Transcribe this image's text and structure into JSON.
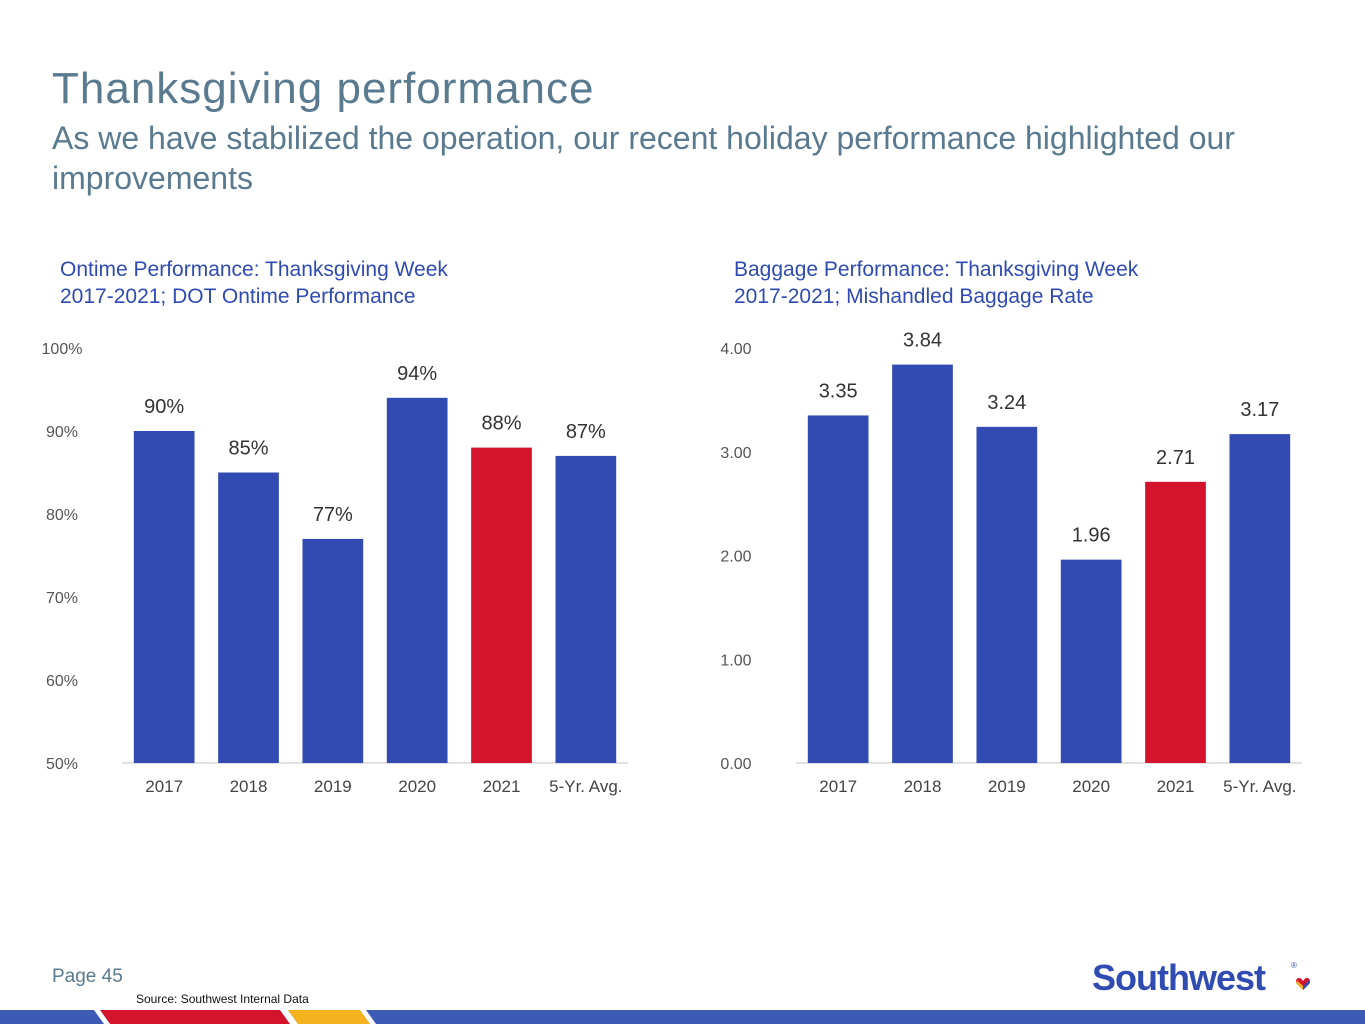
{
  "title": "Thanksgiving performance",
  "subtitle": "As we have stabilized the operation, our recent holiday performance highlighted our improvements",
  "page": "Page 45",
  "source": "Source:  Southwest Internal Data",
  "logo": "Southwest",
  "logo_mark": "®",
  "colors": {
    "bar": "#314bb2",
    "highlight": "#d4142c",
    "heading": "#5a7a90",
    "chart_title": "#2f4bb3"
  },
  "chart_data": [
    {
      "type": "bar",
      "title_line1": "Ontime Performance:  Thanksgiving Week",
      "title_line2": "2017-2021;  DOT Ontime Performance",
      "categories": [
        "2017",
        "2018",
        "2019",
        "2020",
        "2021",
        "5-Yr. Avg."
      ],
      "values": [
        90,
        85,
        77,
        94,
        88,
        87
      ],
      "labels": [
        "90%",
        "85%",
        "77%",
        "94%",
        "88%",
        "87%"
      ],
      "highlight_index": 4,
      "ylim": [
        50,
        100
      ],
      "yticks": [
        50,
        60,
        70,
        80,
        90,
        100
      ],
      "ytick_labels": [
        "50%",
        "60%",
        "70%",
        "80%",
        "90%",
        "100%"
      ],
      "grid": false
    },
    {
      "type": "bar",
      "title_line1": "Baggage Performance:  Thanksgiving Week",
      "title_line2": "2017-2021;  Mishandled Baggage Rate",
      "categories": [
        "2017",
        "2018",
        "2019",
        "2020",
        "2021",
        "5-Yr. Avg."
      ],
      "values": [
        3.35,
        3.84,
        3.24,
        1.96,
        2.71,
        3.17
      ],
      "labels": [
        "3.35",
        "3.84",
        "3.24",
        "1.96",
        "2.71",
        "3.17"
      ],
      "highlight_index": 4,
      "ylim": [
        0,
        4
      ],
      "yticks": [
        0,
        1,
        2,
        3,
        4
      ],
      "ytick_labels": [
        "0.00",
        "1.00",
        "2.00",
        "3.00",
        "4.00"
      ],
      "grid": false
    }
  ]
}
